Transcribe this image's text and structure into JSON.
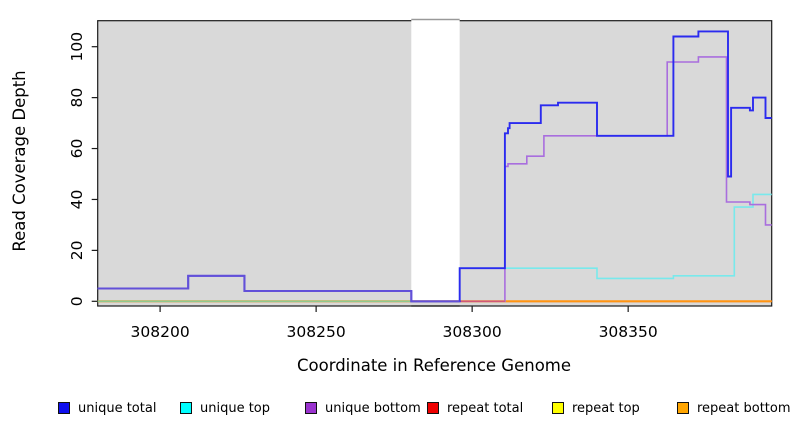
{
  "chart_data": {
    "type": "line",
    "subtype": "step-coverage-plot",
    "title": "",
    "xlabel": "Coordinate in Reference Genome",
    "ylabel": "Read Coverage Depth",
    "xlim": [
      308180,
      308396
    ],
    "ylim": [
      0,
      110
    ],
    "x_ticks": [
      308200,
      308250,
      308300,
      308350
    ],
    "y_ticks": [
      0,
      20,
      40,
      60,
      80,
      100
    ],
    "grid": "off",
    "plot_background": "#d9d9d9",
    "frame_color": "#1a1a1a",
    "masked_region": {
      "x_start": 308280.5,
      "x_end": 308296,
      "fill": "#ffffff",
      "top_rule_color": "#999999"
    },
    "series": [
      {
        "name": "unique total",
        "line_color": "#2b2bef",
        "step_points": [
          [
            308180,
            5
          ],
          [
            308209,
            10
          ],
          [
            308227,
            4
          ],
          [
            308280.5,
            0
          ],
          [
            308296,
            13
          ],
          [
            308310.5,
            66
          ],
          [
            308311.5,
            68
          ],
          [
            308312,
            70
          ],
          [
            308322,
            77
          ],
          [
            308327.5,
            78
          ],
          [
            308340,
            65
          ],
          [
            308364.5,
            104
          ],
          [
            308372.5,
            106
          ],
          [
            308382,
            49
          ],
          [
            308383,
            76
          ],
          [
            308389,
            75
          ],
          [
            308390,
            80
          ],
          [
            308394,
            72
          ]
        ]
      },
      {
        "name": "unique top",
        "line_color": "#78e9ec",
        "step_points": [
          [
            308180,
            0
          ],
          [
            308296,
            13
          ],
          [
            308340,
            9
          ],
          [
            308364.5,
            10
          ],
          [
            308384,
            37
          ],
          [
            308390,
            42
          ]
        ]
      },
      {
        "name": "unique bottom",
        "line_color": "#a96ede",
        "step_points": [
          [
            308180,
            5
          ],
          [
            308209,
            10
          ],
          [
            308227,
            4
          ],
          [
            308280.5,
            0
          ],
          [
            308310.5,
            53
          ],
          [
            308311.5,
            54
          ],
          [
            308317.5,
            57
          ],
          [
            308323,
            65
          ],
          [
            308362.5,
            94
          ],
          [
            308372.5,
            96
          ],
          [
            308381.5,
            39
          ],
          [
            308389,
            38
          ],
          [
            308394,
            30
          ]
        ]
      },
      {
        "name": "repeat total",
        "line_color": "#ee0000",
        "step_points": [
          [
            308180,
            0
          ]
        ]
      },
      {
        "name": "repeat top",
        "line_color": "#ffff00",
        "step_points": [
          [
            308180,
            0
          ]
        ]
      },
      {
        "name": "repeat bottom",
        "line_color": "#ff9412",
        "step_points": [
          [
            308180,
            0
          ]
        ]
      }
    ],
    "overlap_segments": [
      {
        "name": "unique-top-over-repeat-top-baseline",
        "apparent_color": "#8fc98f",
        "points": [
          [
            308180,
            0
          ],
          [
            308280.5,
            0
          ]
        ]
      },
      {
        "name": "repeat-total-baseline-visible",
        "apparent_color": "#d05878",
        "points": [
          [
            308296,
            0
          ],
          [
            308310.5,
            0
          ]
        ]
      },
      {
        "name": "unique-bottom-under-unique-total-tint",
        "apparent_color": "#6350d8",
        "points": [
          [
            308180,
            5
          ],
          [
            308209,
            10
          ],
          [
            308227,
            4
          ],
          [
            308280.5,
            0
          ],
          [
            308296,
            0
          ]
        ]
      }
    ]
  },
  "legend": {
    "items": [
      {
        "label": "unique total",
        "color": "#0f0fee"
      },
      {
        "label": "unique top",
        "color": "#00ffff"
      },
      {
        "label": "unique bottom",
        "color": "#9a33cf"
      },
      {
        "label": "repeat total",
        "color": "#ee0000"
      },
      {
        "label": "repeat top",
        "color": "#ffff00"
      },
      {
        "label": "repeat bottom",
        "color": "#ffa500"
      }
    ]
  }
}
